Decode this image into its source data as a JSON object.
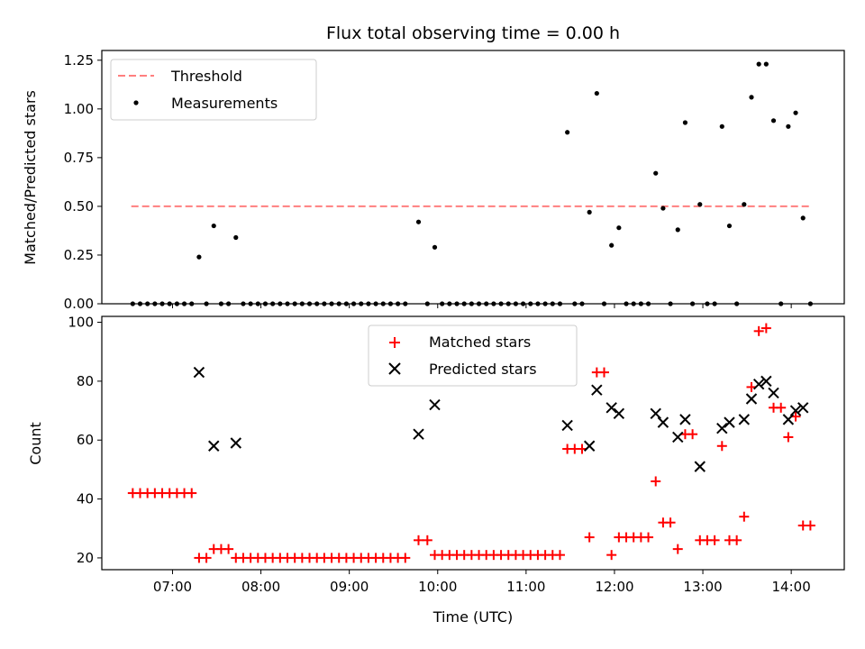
{
  "title": "Flux total observing time = 0.00 h",
  "colors": {
    "threshold": "#ff7f7f",
    "measurements": "#000000",
    "matched": "#ff0000",
    "predicted": "#000000"
  },
  "chart_data": [
    {
      "type": "scatter",
      "ylabel": "Matched/Predicted stars",
      "ylim": [
        0,
        1.3
      ],
      "xlim": [
        "06:12",
        "14:36"
      ],
      "yticks": [
        "0.00",
        "0.25",
        "0.50",
        "0.75",
        "1.00",
        "1.25"
      ],
      "legend": {
        "position": "top-left",
        "entries": [
          "Threshold",
          "Measurements"
        ]
      },
      "threshold": {
        "name": "Threshold",
        "value": 0.5,
        "x_start": "06:32",
        "x_end": "14:13"
      },
      "series": [
        {
          "name": "Measurements",
          "points": [
            [
              "06:33",
              0
            ],
            [
              "06:38",
              0
            ],
            [
              "06:43",
              0
            ],
            [
              "06:48",
              0
            ],
            [
              "06:53",
              0
            ],
            [
              "06:58",
              0
            ],
            [
              "07:03",
              0
            ],
            [
              "07:08",
              0
            ],
            [
              "07:13",
              0
            ],
            [
              "07:18",
              0.24
            ],
            [
              "07:23",
              0
            ],
            [
              "07:28",
              0.4
            ],
            [
              "07:33",
              0
            ],
            [
              "07:38",
              0
            ],
            [
              "07:43",
              0.34
            ],
            [
              "07:48",
              0
            ],
            [
              "07:53",
              0
            ],
            [
              "07:58",
              0
            ],
            [
              "08:03",
              0
            ],
            [
              "08:08",
              0
            ],
            [
              "08:13",
              0
            ],
            [
              "08:18",
              0
            ],
            [
              "08:23",
              0
            ],
            [
              "08:28",
              0
            ],
            [
              "08:33",
              0
            ],
            [
              "08:38",
              0
            ],
            [
              "08:43",
              0
            ],
            [
              "08:48",
              0
            ],
            [
              "08:53",
              0
            ],
            [
              "08:58",
              0
            ],
            [
              "09:03",
              0
            ],
            [
              "09:08",
              0
            ],
            [
              "09:13",
              0
            ],
            [
              "09:18",
              0
            ],
            [
              "09:23",
              0
            ],
            [
              "09:28",
              0
            ],
            [
              "09:33",
              0
            ],
            [
              "09:38",
              0
            ],
            [
              "09:47",
              0.42
            ],
            [
              "09:53",
              0
            ],
            [
              "09:58",
              0.29
            ],
            [
              "10:03",
              0
            ],
            [
              "10:08",
              0
            ],
            [
              "10:13",
              0
            ],
            [
              "10:18",
              0
            ],
            [
              "10:23",
              0
            ],
            [
              "10:28",
              0
            ],
            [
              "10:33",
              0
            ],
            [
              "10:38",
              0
            ],
            [
              "10:43",
              0
            ],
            [
              "10:48",
              0
            ],
            [
              "10:53",
              0
            ],
            [
              "10:58",
              0
            ],
            [
              "11:03",
              0
            ],
            [
              "11:08",
              0
            ],
            [
              "11:13",
              0
            ],
            [
              "11:18",
              0
            ],
            [
              "11:23",
              0
            ],
            [
              "11:28",
              0.88
            ],
            [
              "11:33",
              0
            ],
            [
              "11:38",
              0
            ],
            [
              "11:43",
              0.47
            ],
            [
              "11:48",
              1.08
            ],
            [
              "11:53",
              0
            ],
            [
              "11:58",
              0.3
            ],
            [
              "12:03",
              0.39
            ],
            [
              "12:08",
              0
            ],
            [
              "12:13",
              0
            ],
            [
              "12:18",
              0
            ],
            [
              "12:23",
              0
            ],
            [
              "12:28",
              0.67
            ],
            [
              "12:33",
              0.49
            ],
            [
              "12:38",
              0
            ],
            [
              "12:43",
              0.38
            ],
            [
              "12:48",
              0.93
            ],
            [
              "12:53",
              0
            ],
            [
              "12:58",
              0.51
            ],
            [
              "13:03",
              0
            ],
            [
              "13:08",
              0
            ],
            [
              "13:13",
              0.91
            ],
            [
              "13:18",
              0.4
            ],
            [
              "13:23",
              0
            ],
            [
              "13:28",
              0.51
            ],
            [
              "13:33",
              1.06
            ],
            [
              "13:38",
              1.23
            ],
            [
              "13:43",
              1.23
            ],
            [
              "13:48",
              0.94
            ],
            [
              "13:53",
              0
            ],
            [
              "13:58",
              0.91
            ],
            [
              "14:03",
              0.98
            ],
            [
              "14:08",
              0.44
            ],
            [
              "14:13",
              0
            ]
          ]
        }
      ]
    },
    {
      "type": "scatter",
      "xlabel": "Time (UTC)",
      "ylabel": "Count",
      "ylim": [
        16,
        102
      ],
      "xlim": [
        "06:12",
        "14:36"
      ],
      "yticks": [
        "20",
        "40",
        "60",
        "80",
        "100"
      ],
      "xticks": [
        "07:00",
        "08:00",
        "09:00",
        "10:00",
        "11:00",
        "12:00",
        "13:00",
        "14:00"
      ],
      "legend": {
        "position": "top-center",
        "entries": [
          "Matched stars",
          "Predicted stars"
        ]
      },
      "series": [
        {
          "name": "Matched stars",
          "marker": "+",
          "points": [
            [
              "06:33",
              42
            ],
            [
              "06:38",
              42
            ],
            [
              "06:43",
              42
            ],
            [
              "06:48",
              42
            ],
            [
              "06:53",
              42
            ],
            [
              "06:58",
              42
            ],
            [
              "07:03",
              42
            ],
            [
              "07:08",
              42
            ],
            [
              "07:13",
              42
            ],
            [
              "07:18",
              20
            ],
            [
              "07:23",
              20
            ],
            [
              "07:28",
              23
            ],
            [
              "07:33",
              23
            ],
            [
              "07:38",
              23
            ],
            [
              "07:43",
              20
            ],
            [
              "07:48",
              20
            ],
            [
              "07:53",
              20
            ],
            [
              "07:58",
              20
            ],
            [
              "08:03",
              20
            ],
            [
              "08:08",
              20
            ],
            [
              "08:13",
              20
            ],
            [
              "08:18",
              20
            ],
            [
              "08:23",
              20
            ],
            [
              "08:28",
              20
            ],
            [
              "08:33",
              20
            ],
            [
              "08:38",
              20
            ],
            [
              "08:43",
              20
            ],
            [
              "08:48",
              20
            ],
            [
              "08:53",
              20
            ],
            [
              "08:58",
              20
            ],
            [
              "09:03",
              20
            ],
            [
              "09:08",
              20
            ],
            [
              "09:13",
              20
            ],
            [
              "09:18",
              20
            ],
            [
              "09:23",
              20
            ],
            [
              "09:28",
              20
            ],
            [
              "09:33",
              20
            ],
            [
              "09:38",
              20
            ],
            [
              "09:47",
              26
            ],
            [
              "09:53",
              26
            ],
            [
              "09:58",
              21
            ],
            [
              "10:03",
              21
            ],
            [
              "10:08",
              21
            ],
            [
              "10:13",
              21
            ],
            [
              "10:18",
              21
            ],
            [
              "10:23",
              21
            ],
            [
              "10:28",
              21
            ],
            [
              "10:33",
              21
            ],
            [
              "10:38",
              21
            ],
            [
              "10:43",
              21
            ],
            [
              "10:48",
              21
            ],
            [
              "10:53",
              21
            ],
            [
              "10:58",
              21
            ],
            [
              "11:03",
              21
            ],
            [
              "11:08",
              21
            ],
            [
              "11:13",
              21
            ],
            [
              "11:18",
              21
            ],
            [
              "11:23",
              21
            ],
            [
              "11:28",
              57
            ],
            [
              "11:33",
              57
            ],
            [
              "11:38",
              57
            ],
            [
              "11:43",
              27
            ],
            [
              "11:48",
              83
            ],
            [
              "11:53",
              83
            ],
            [
              "11:58",
              21
            ],
            [
              "12:03",
              27
            ],
            [
              "12:08",
              27
            ],
            [
              "12:13",
              27
            ],
            [
              "12:18",
              27
            ],
            [
              "12:23",
              27
            ],
            [
              "12:28",
              46
            ],
            [
              "12:33",
              32
            ],
            [
              "12:38",
              32
            ],
            [
              "12:43",
              23
            ],
            [
              "12:48",
              62
            ],
            [
              "12:53",
              62
            ],
            [
              "12:58",
              26
            ],
            [
              "13:03",
              26
            ],
            [
              "13:08",
              26
            ],
            [
              "13:13",
              58
            ],
            [
              "13:18",
              26
            ],
            [
              "13:23",
              26
            ],
            [
              "13:28",
              34
            ],
            [
              "13:33",
              78
            ],
            [
              "13:38",
              97
            ],
            [
              "13:43",
              98
            ],
            [
              "13:48",
              71
            ],
            [
              "13:53",
              71
            ],
            [
              "13:58",
              61
            ],
            [
              "14:03",
              68
            ],
            [
              "14:08",
              31
            ],
            [
              "14:13",
              31
            ]
          ]
        },
        {
          "name": "Predicted stars",
          "marker": "x",
          "points": [
            [
              "07:18",
              83
            ],
            [
              "07:28",
              58
            ],
            [
              "07:43",
              59
            ],
            [
              "09:47",
              62
            ],
            [
              "09:58",
              72
            ],
            [
              "11:28",
              65
            ],
            [
              "11:43",
              58
            ],
            [
              "11:48",
              77
            ],
            [
              "11:58",
              71
            ],
            [
              "12:03",
              69
            ],
            [
              "12:28",
              69
            ],
            [
              "12:33",
              66
            ],
            [
              "12:43",
              61
            ],
            [
              "12:48",
              67
            ],
            [
              "12:58",
              51
            ],
            [
              "13:13",
              64
            ],
            [
              "13:18",
              66
            ],
            [
              "13:28",
              67
            ],
            [
              "13:33",
              74
            ],
            [
              "13:38",
              79
            ],
            [
              "13:43",
              80
            ],
            [
              "13:48",
              76
            ],
            [
              "13:58",
              67
            ],
            [
              "14:03",
              70
            ],
            [
              "14:08",
              71
            ]
          ]
        }
      ]
    }
  ]
}
